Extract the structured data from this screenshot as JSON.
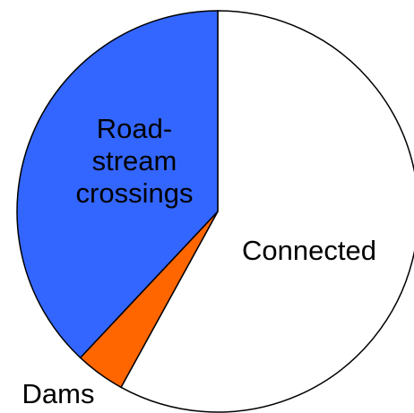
{
  "chart_data": {
    "type": "pie",
    "categories": [
      "Connected",
      "Dams",
      "Road-stream crossings"
    ],
    "values": [
      58,
      4,
      38
    ],
    "colors": [
      "#ffffff",
      "#ff6600",
      "#3366ff"
    ]
  }
}
